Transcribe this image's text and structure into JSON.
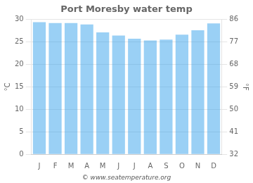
{
  "chart_data": {
    "type": "bar",
    "title": "Port Moresby water temp",
    "categories": [
      "J",
      "F",
      "M",
      "A",
      "M",
      "J",
      "J",
      "A",
      "S",
      "O",
      "N",
      "D"
    ],
    "values": [
      29.4,
      29.2,
      29.2,
      28.9,
      27.1,
      26.4,
      25.7,
      25.3,
      25.5,
      26.6,
      27.6,
      29.1
    ],
    "ylabel": "°C",
    "y2label": "°F",
    "ylim": [
      0,
      30
    ],
    "yticks": [
      0,
      5,
      10,
      15,
      20,
      25,
      30
    ],
    "y2lim": [
      32,
      86
    ],
    "y2ticks": [
      32,
      41,
      50,
      59,
      68,
      77,
      86
    ],
    "grid": true,
    "annotations": [
      "© www.seatemperature.org"
    ]
  }
}
